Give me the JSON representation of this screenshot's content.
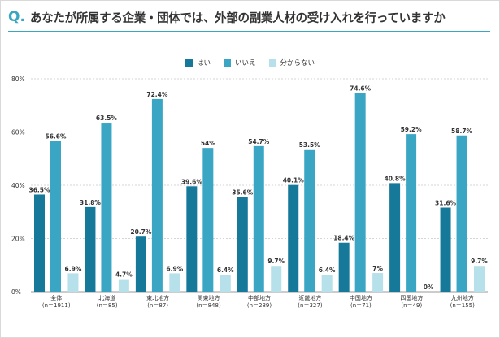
{
  "question": {
    "mark": "Q.",
    "text": "あなたが所属する企業・団体では、外部の副業人材の受け入れを行っていますか"
  },
  "colors": {
    "accent": "#3aa6bf",
    "hai": "#16799a",
    "iie": "#3aa6c4",
    "wakaranai": "#b6e0ea",
    "grid": "#c8c8c8"
  },
  "chart_data": {
    "type": "bar",
    "title": "",
    "xlabel": "",
    "ylabel": "",
    "ylim": [
      0,
      80
    ],
    "yticks": [
      0,
      20,
      40,
      60,
      80
    ],
    "ytick_labels": [
      "0%",
      "20%",
      "40%",
      "60%",
      "80%"
    ],
    "legend_position": "top-center",
    "categories": [
      {
        "name": "全体",
        "n": "(n＝1911)"
      },
      {
        "name": "北海道",
        "n": "(n＝85)"
      },
      {
        "name": "東北地方",
        "n": "(n＝87)"
      },
      {
        "name": "関東地方",
        "n": "(n＝848)"
      },
      {
        "name": "中部地方",
        "n": "(n＝289)"
      },
      {
        "name": "近畿地方",
        "n": "(n＝327)"
      },
      {
        "name": "中国地方",
        "n": "(n＝71)"
      },
      {
        "name": "四国地方",
        "n": "(n＝49)"
      },
      {
        "name": "九州地方",
        "n": "(n＝155)"
      }
    ],
    "series": [
      {
        "name": "はい",
        "color_key": "hai",
        "values": [
          36.5,
          31.8,
          20.7,
          39.6,
          35.6,
          40.1,
          18.4,
          40.8,
          31.6
        ],
        "labels": [
          "36.5%",
          "31.8%",
          "20.7%",
          "39.6%",
          "35.6%",
          "40.1%",
          "18.4%",
          "40.8%",
          "31.6%"
        ]
      },
      {
        "name": "いいえ",
        "color_key": "iie",
        "values": [
          56.6,
          63.5,
          72.4,
          54,
          54.7,
          53.5,
          74.6,
          59.2,
          58.7
        ],
        "labels": [
          "56.6%",
          "63.5%",
          "72.4%",
          "54%",
          "54.7%",
          "53.5%",
          "74.6%",
          "59.2%",
          "58.7%"
        ]
      },
      {
        "name": "分からない",
        "color_key": "wakaranai",
        "values": [
          6.9,
          4.7,
          6.9,
          6.4,
          9.7,
          6.4,
          7,
          0,
          9.7
        ],
        "labels": [
          "6.9%",
          "4.7%",
          "6.9%",
          "6.4%",
          "9.7%",
          "6.4%",
          "7%",
          "0%",
          "9.7%"
        ]
      }
    ]
  }
}
